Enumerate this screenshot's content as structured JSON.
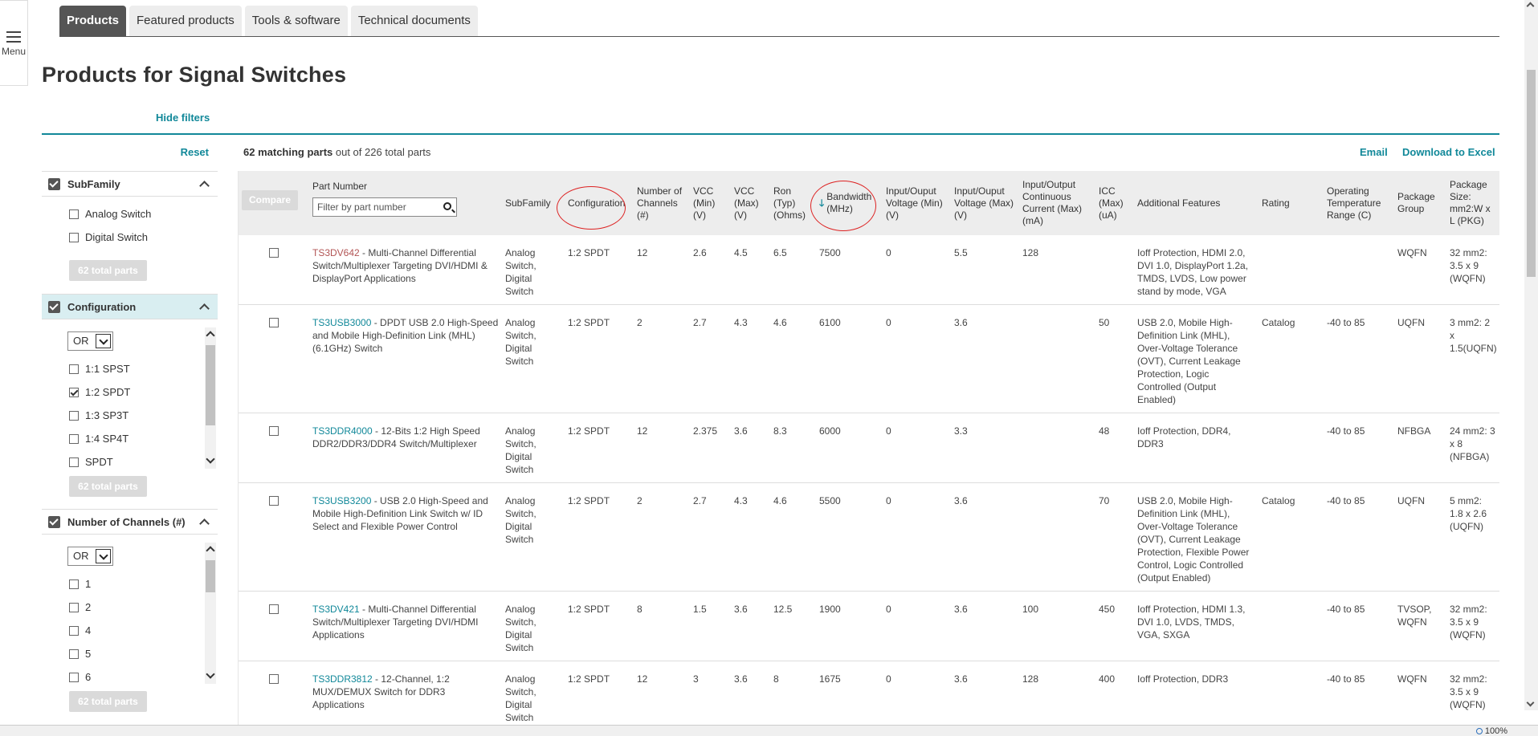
{
  "menu": {
    "label": "Menu"
  },
  "tabs": [
    {
      "label": "Products",
      "active": true
    },
    {
      "label": "Featured products",
      "active": false
    },
    {
      "label": "Tools & software",
      "active": false
    },
    {
      "label": "Technical documents",
      "active": false
    }
  ],
  "page_title": "Products for Signal Switches",
  "hide_filters": "Hide filters",
  "filters": {
    "reset": "Reset",
    "subfamily": {
      "title": "SubFamily",
      "options": [
        {
          "label": "Analog Switch",
          "checked": false
        },
        {
          "label": "Digital Switch",
          "checked": false
        }
      ],
      "totals_button": "62 total parts"
    },
    "configuration": {
      "title": "Configuration",
      "operator": "OR",
      "options": [
        {
          "label": "1:1 SPST",
          "checked": false
        },
        {
          "label": "1:2 SPDT",
          "checked": true
        },
        {
          "label": "1:3 SP3T",
          "checked": false
        },
        {
          "label": "1:4 SP4T",
          "checked": false
        },
        {
          "label": "SPDT",
          "checked": false
        }
      ],
      "totals_button": "62 total parts"
    },
    "channels": {
      "title": "Number of Channels (#)",
      "operator": "OR",
      "options": [
        {
          "label": "1",
          "checked": false
        },
        {
          "label": "2",
          "checked": false
        },
        {
          "label": "4",
          "checked": false
        },
        {
          "label": "5",
          "checked": false
        },
        {
          "label": "6",
          "checked": false
        }
      ],
      "totals_button": "62 total parts"
    }
  },
  "results": {
    "matching": "62 matching parts",
    "rest": " out of 226 total parts"
  },
  "actions": {
    "email": "Email",
    "download": "Download to Excel"
  },
  "table": {
    "compare": "Compare",
    "part_number_header": "Part Number",
    "filter_placeholder": "Filter by part number",
    "sort_arrow": "🡓",
    "headers": [
      "SubFamily",
      "Configuration",
      "Number of Channels (#)",
      "VCC (Min) (V)",
      "VCC (Max) (V)",
      "Ron (Typ) (Ohms)",
      "Bandwidth (MHz)",
      "Input/Ouput Voltage (Min) (V)",
      "Input/Ouput Voltage (Max) (V)",
      "Input/Output Continuous Current (Max) (mA)",
      "ICC (Max) (uA)",
      "Additional Features",
      "Rating",
      "Operating Temperature Range (C)",
      "Package Group",
      "Package Size: mm2:W x L (PKG)"
    ],
    "rows": [
      {
        "part": "TS3DV642",
        "desc": " - Multi-Channel Differential Switch/Multiplexer Targeting DVI/HDMI & DisplayPort Applications",
        "visited": true,
        "cells": [
          "Analog Switch, Digital Switch",
          "1:2 SPDT",
          "12",
          "2.6",
          "4.5",
          "6.5",
          "7500",
          "0",
          "5.5",
          "128",
          "",
          "Ioff Protection, HDMI 2.0, DVI 1.0, DisplayPort 1.2a, TMDS, LVDS, Low power stand by mode, VGA",
          "",
          "",
          "WQFN",
          "32 mm2: 3.5 x 9 (WQFN)"
        ]
      },
      {
        "part": "TS3USB3000",
        "desc": " - DPDT USB 2.0 High-Speed and Mobile High-Definition Link (MHL) (6.1GHz) Switch",
        "visited": false,
        "cells": [
          "Analog Switch, Digital Switch",
          "1:2 SPDT",
          "2",
          "2.7",
          "4.3",
          "4.6",
          "6100",
          "0",
          "3.6",
          "",
          "50",
          "USB 2.0, Mobile High-Definition Link (MHL), Over-Voltage Tolerance (OVT), Current Leakage Protection, Logic Controlled (Output Enabled)",
          "Catalog",
          "-40 to 85",
          "UQFN",
          "3 mm2: 2 x 1.5(UQFN)"
        ]
      },
      {
        "part": "TS3DDR4000",
        "desc": " - 12-Bits 1:2 High Speed DDR2/DDR3/DDR4 Switch/Multiplexer",
        "visited": false,
        "cells": [
          "Analog Switch, Digital Switch",
          "1:2 SPDT",
          "12",
          "2.375",
          "3.6",
          "8.3",
          "6000",
          "0",
          "3.3",
          "",
          "48",
          "Ioff Protection, DDR4, DDR3",
          "",
          "-40 to 85",
          "NFBGA",
          "24 mm2: 3 x 8 (NFBGA)"
        ]
      },
      {
        "part": "TS3USB3200",
        "desc": " - USB 2.0 High-Speed and Mobile High-Definition Link Switch w/ ID Select and Flexible Power Control",
        "visited": false,
        "cells": [
          "Analog Switch, Digital Switch",
          "1:2 SPDT",
          "2",
          "2.7",
          "4.3",
          "4.6",
          "5500",
          "0",
          "3.6",
          "",
          "70",
          "USB 2.0, Mobile High-Definition Link (MHL), Over-Voltage Tolerance (OVT), Current Leakage Protection, Flexible Power Control, Logic Controlled (Output Enabled)",
          "Catalog",
          "-40 to 85",
          "UQFN",
          "5 mm2: 1.8 x 2.6 (UQFN)"
        ]
      },
      {
        "part": "TS3DV421",
        "desc": " - Multi-Channel Differential Switch/Multiplexer Targeting DVI/HDMI Applications",
        "visited": false,
        "cells": [
          "Analog Switch, Digital Switch",
          "1:2 SPDT",
          "8",
          "1.5",
          "3.6",
          "12.5",
          "1900",
          "0",
          "3.6",
          "100",
          "450",
          "Ioff Protection, HDMI 1.3, DVI 1.0, LVDS, TMDS, VGA, SXGA",
          "",
          "-40 to 85",
          "TVSOP, WQFN",
          "32 mm2: 3.5 x 9 (WQFN)"
        ]
      },
      {
        "part": "TS3DDR3812",
        "desc": " - 12-Channel, 1:2 MUX/DEMUX Switch for DDR3 Applications",
        "visited": false,
        "cells": [
          "Analog Switch, Digital Switch",
          "1:2 SPDT",
          "12",
          "3",
          "3.6",
          "8",
          "1675",
          "0",
          "3.6",
          "128",
          "400",
          "Ioff Protection, DDR3",
          "",
          "-40 to 85",
          "WQFN",
          "32 mm2: 3.5 x 9 (WQFN)"
        ]
      }
    ]
  },
  "status": {
    "zoom": "100%"
  }
}
